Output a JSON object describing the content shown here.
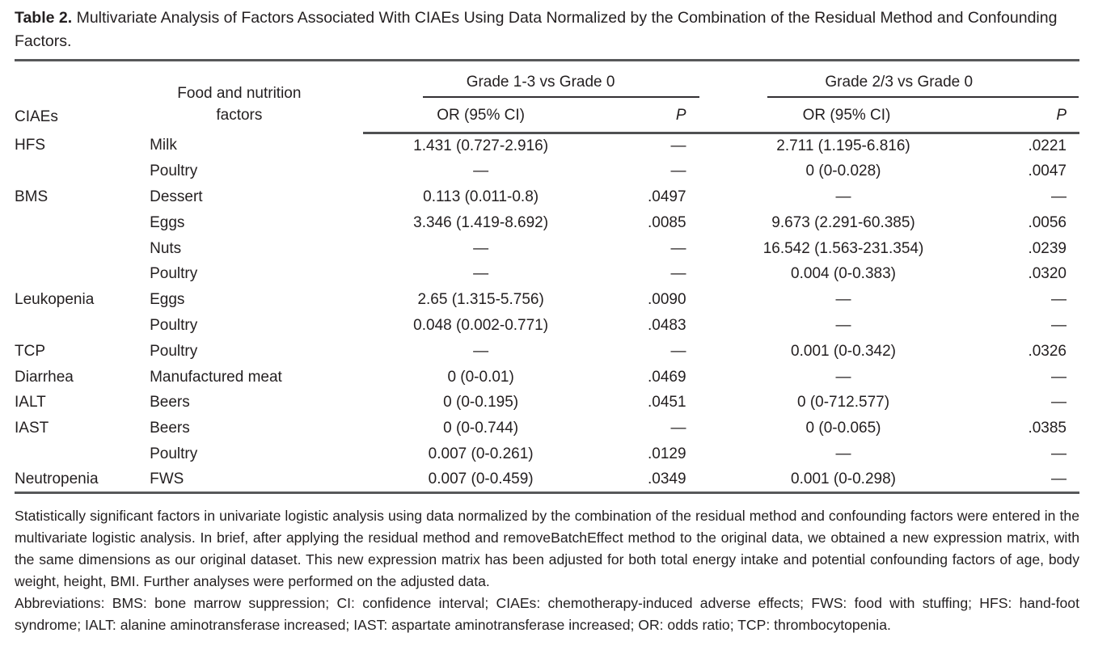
{
  "title": {
    "label": "Table 2.",
    "text": " Multivariate Analysis of Factors Associated With CIAEs Using Data Normalized by the Combination of the Residual Method and Confounding Factors."
  },
  "table": {
    "col_headers": {
      "ciaes": "CIAEs",
      "factors_line1": "Food and nutrition",
      "factors_line2": "factors",
      "group1": "Grade 1-3 vs Grade 0",
      "group2": "Grade 2/3 vs Grade 0",
      "or_ci": "OR (95% CI)",
      "p": "P"
    },
    "rows": [
      {
        "ciae": "HFS",
        "factor": "Milk",
        "or1": "1.431 (0.727-2.916)",
        "p1": "—",
        "or2": "2.711 (1.195-6.816)",
        "p2": ".0221"
      },
      {
        "ciae": "",
        "factor": "Poultry",
        "or1": "—",
        "p1": "—",
        "or2": "0 (0-0.028)",
        "p2": ".0047"
      },
      {
        "ciae": "BMS",
        "factor": "Dessert",
        "or1": "0.113 (0.011-0.8)",
        "p1": ".0497",
        "or2": "—",
        "p2": "—"
      },
      {
        "ciae": "",
        "factor": "Eggs",
        "or1": "3.346 (1.419-8.692)",
        "p1": ".0085",
        "or2": "9.673 (2.291-60.385)",
        "p2": ".0056"
      },
      {
        "ciae": "",
        "factor": "Nuts",
        "or1": "—",
        "p1": "—",
        "or2": "16.542 (1.563-231.354)",
        "p2": ".0239"
      },
      {
        "ciae": "",
        "factor": "Poultry",
        "or1": "—",
        "p1": "—",
        "or2": "0.004 (0-0.383)",
        "p2": ".0320"
      },
      {
        "ciae": "Leukopenia",
        "factor": "Eggs",
        "or1": "2.65 (1.315-5.756)",
        "p1": ".0090",
        "or2": "—",
        "p2": "—"
      },
      {
        "ciae": "",
        "factor": "Poultry",
        "or1": "0.048 (0.002-0.771)",
        "p1": ".0483",
        "or2": "—",
        "p2": "—"
      },
      {
        "ciae": "TCP",
        "factor": "Poultry",
        "or1": "—",
        "p1": "—",
        "or2": "0.001 (0-0.342)",
        "p2": ".0326"
      },
      {
        "ciae": "Diarrhea",
        "factor": "Manufactured meat",
        "or1": "0 (0-0.01)",
        "p1": ".0469",
        "or2": "—",
        "p2": "—"
      },
      {
        "ciae": "IALT",
        "factor": "Beers",
        "or1": "0 (0-0.195)",
        "p1": ".0451",
        "or2": "0 (0-712.577)",
        "p2": "—"
      },
      {
        "ciae": "IAST",
        "factor": "Beers",
        "or1": "0 (0-0.744)",
        "p1": "—",
        "or2": "0 (0-0.065)",
        "p2": ".0385"
      },
      {
        "ciae": "",
        "factor": "Poultry",
        "or1": "0.007 (0-0.261)",
        "p1": ".0129",
        "or2": "—",
        "p2": "—"
      },
      {
        "ciae": "Neutropenia",
        "factor": "FWS",
        "or1": "0.007 (0-0.459)",
        "p1": ".0349",
        "or2": "0.001 (0-0.298)",
        "p2": "—"
      }
    ]
  },
  "footnotes": {
    "note": "Statistically significant factors in univariate logistic analysis using data normalized by the combination of the residual method and confounding factors were entered in the multivariate logistic analysis. In brief, after applying the residual method and removeBatchEffect method to the original data, we obtained a new expression matrix, with the same dimensions as our original dataset. This new expression matrix has been adjusted for both total energy intake and potential confounding factors of age, body weight, height, BMI. Further analyses were performed on the adjusted data.",
    "abbreviations": "Abbreviations: BMS: bone marrow suppression; CI: confidence interval; CIAEs: chemotherapy-induced adverse effects; FWS: food with stuffing; HFS: hand-foot syndrome; IALT: alanine aminotransferase increased; IAST: aspartate aminotransferase increased; OR: odds ratio; TCP: thrombocytopenia."
  },
  "colors": {
    "text": "#231f20",
    "rule_heavy": "#57585a",
    "rule_light": "#323033"
  }
}
